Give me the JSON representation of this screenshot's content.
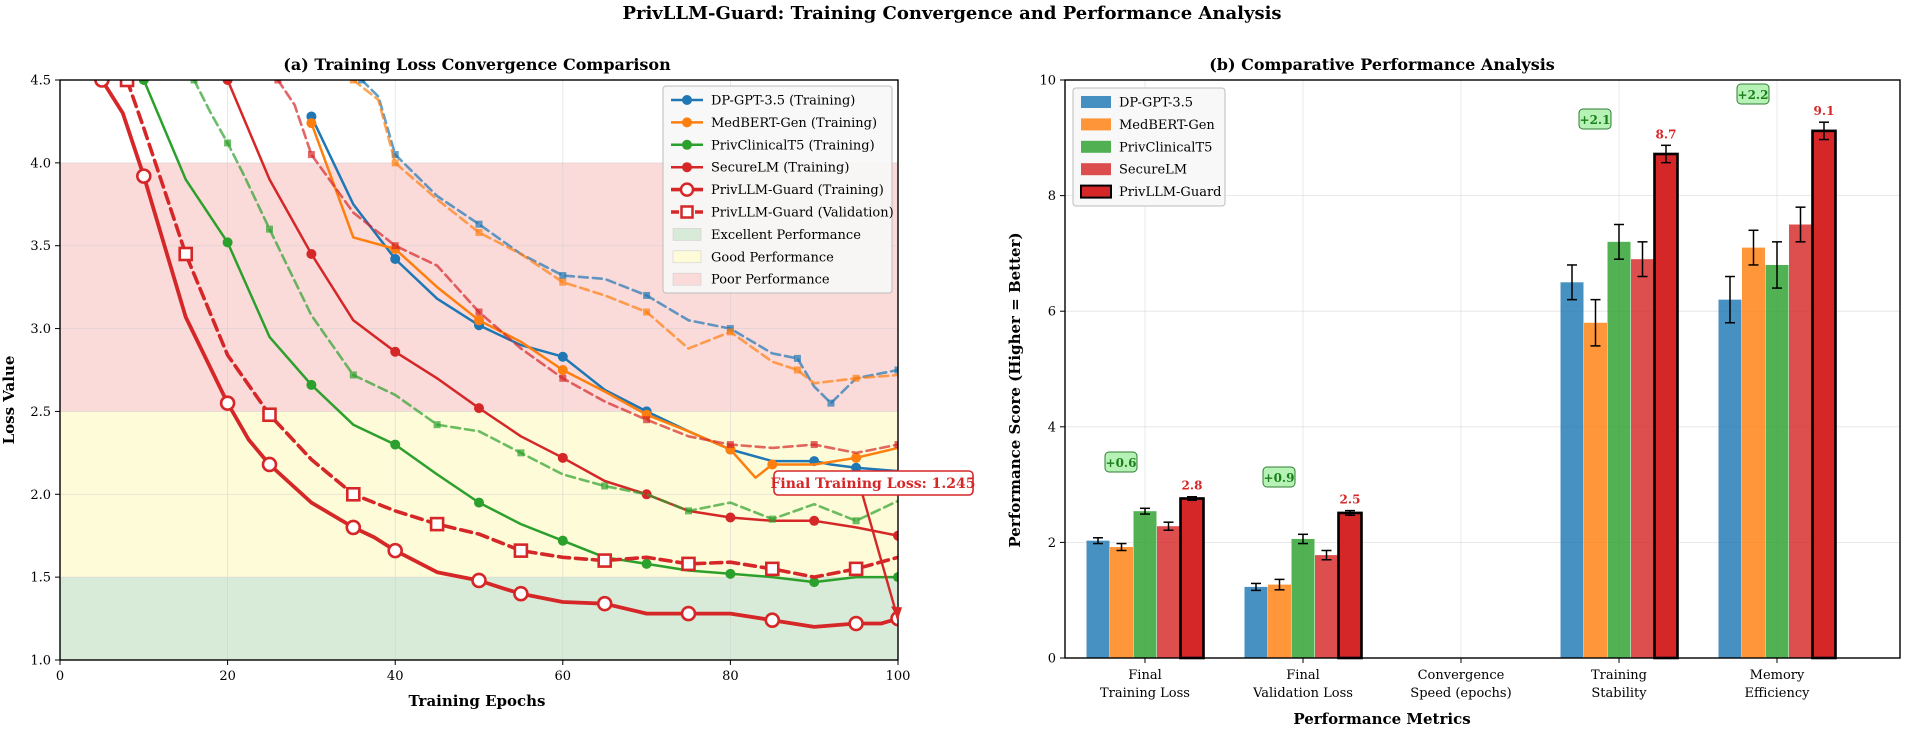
{
  "figure": {
    "suptitle": "PrivLLM-Guard: Training Convergence and Performance Analysis"
  },
  "colors": {
    "blue": "#1f77b4",
    "orange": "#ff7f0e",
    "green": "#2ca02c",
    "red": "#d62728",
    "redDark": "#c41e1e",
    "excellent": "#d8ebd8",
    "good": "#fdfbd8",
    "poor": "#fbdada",
    "labelRed": "#d62728",
    "improveBg": "#b6f2b6",
    "improveText": "#1a7f1a"
  },
  "chart_data": [
    {
      "type": "line",
      "title": "(a) Training Loss Convergence Comparison",
      "xlabel": "Training Epochs",
      "ylabel": "Loss Value",
      "xlim": [
        0,
        100
      ],
      "ylim": [
        1.0,
        4.5
      ],
      "xticks": [
        "0",
        "20",
        "40",
        "60",
        "80",
        "100"
      ],
      "yticks": [
        "1.0",
        "1.5",
        "2.0",
        "2.5",
        "3.0",
        "3.5",
        "4.0",
        "4.5"
      ],
      "grid": true,
      "bands": [
        {
          "name": "Excellent Performance",
          "from": 1.0,
          "to": 1.5,
          "color": "#d8ebd8"
        },
        {
          "name": "Good Performance",
          "from": 1.5,
          "to": 2.5,
          "color": "#fdfbd8"
        },
        {
          "name": "Poor Performance",
          "from": 2.5,
          "to": 4.0,
          "color": "#fbdada"
        }
      ],
      "series": [
        {
          "name": "DP-GPT-3.5 (Training)",
          "color": "#1f77b4",
          "style": "solid",
          "marker": "circle",
          "x": [
            30,
            35,
            40,
            45,
            50,
            55,
            60,
            65,
            70,
            75,
            80,
            85,
            90,
            92,
            95,
            100
          ],
          "y": [
            4.28,
            3.75,
            3.42,
            3.18,
            3.02,
            2.9,
            2.83,
            2.63,
            2.5,
            2.38,
            2.27,
            2.2,
            2.2,
            2.18,
            2.16,
            2.14
          ]
        },
        {
          "name": "MedBERT-Gen (Training)",
          "color": "#ff7f0e",
          "style": "solid",
          "marker": "circle",
          "x": [
            30,
            35,
            40,
            45,
            50,
            55,
            60,
            65,
            70,
            75,
            80,
            83,
            85,
            90,
            95,
            100
          ],
          "y": [
            4.24,
            3.55,
            3.48,
            3.25,
            3.05,
            2.92,
            2.75,
            2.62,
            2.48,
            2.38,
            2.27,
            2.1,
            2.18,
            2.18,
            2.22,
            2.28
          ]
        },
        {
          "name": "PrivClinicalT5 (Training)",
          "color": "#2ca02c",
          "style": "solid",
          "marker": "circle",
          "x": [
            10,
            15,
            20,
            25,
            30,
            35,
            40,
            45,
            50,
            55,
            60,
            65,
            70,
            75,
            80,
            85,
            90,
            95,
            100
          ],
          "y": [
            4.5,
            3.9,
            3.52,
            2.95,
            2.66,
            2.42,
            2.3,
            2.12,
            1.95,
            1.82,
            1.72,
            1.62,
            1.58,
            1.54,
            1.52,
            1.5,
            1.47,
            1.5,
            1.5
          ]
        },
        {
          "name": "SecureLM (Training)",
          "color": "#d62728",
          "style": "solid",
          "marker": "circle",
          "x": [
            20,
            25,
            30,
            35,
            40,
            45,
            50,
            55,
            60,
            65,
            70,
            75,
            80,
            85,
            90,
            95,
            100
          ],
          "y": [
            4.5,
            3.9,
            3.45,
            3.05,
            2.86,
            2.7,
            2.52,
            2.35,
            2.22,
            2.08,
            2.0,
            1.9,
            1.86,
            1.84,
            1.84,
            1.8,
            1.75
          ]
        },
        {
          "name": "PrivLLM-Guard (Training)",
          "color": "#d62728",
          "style": "solid-thick",
          "marker": "open-circle",
          "x": [
            5,
            7.5,
            10,
            15,
            20,
            22.5,
            25,
            30,
            35,
            37.5,
            40,
            45,
            50,
            53,
            55,
            60,
            65,
            70,
            75,
            80,
            85,
            90,
            95,
            98,
            100
          ],
          "y": [
            4.5,
            4.3,
            3.92,
            3.07,
            2.55,
            2.33,
            2.18,
            1.95,
            1.8,
            1.74,
            1.66,
            1.53,
            1.48,
            1.43,
            1.4,
            1.35,
            1.34,
            1.28,
            1.28,
            1.28,
            1.24,
            1.2,
            1.22,
            1.22,
            1.25
          ]
        },
        {
          "name": "PrivLLM-Guard (Validation)",
          "color": "#d62728",
          "style": "dashed-thick",
          "marker": "open-square",
          "x": [
            8,
            10,
            15,
            20,
            25,
            30,
            35,
            40,
            45,
            50,
            55,
            60,
            65,
            70,
            75,
            80,
            85,
            90,
            95,
            100
          ],
          "y": [
            4.5,
            4.21,
            3.45,
            2.84,
            2.48,
            2.21,
            2.0,
            1.9,
            1.82,
            1.76,
            1.66,
            1.62,
            1.6,
            1.62,
            1.58,
            1.59,
            1.55,
            1.5,
            1.55,
            1.62
          ]
        },
        {
          "name": "DP-GPT-3.5 (Validation)",
          "color": "#1f77b4",
          "style": "dashed",
          "marker": "square",
          "x": [
            36,
            38,
            40,
            45,
            50,
            55,
            60,
            65,
            70,
            75,
            80,
            85,
            88,
            90,
            92,
            95,
            100
          ],
          "y": [
            4.5,
            4.4,
            4.05,
            3.8,
            3.63,
            3.45,
            3.32,
            3.3,
            3.2,
            3.05,
            3.0,
            2.85,
            2.82,
            2.65,
            2.55,
            2.7,
            2.75
          ]
        },
        {
          "name": "MedBERT-Gen (Validation)",
          "color": "#ff7f0e",
          "style": "dashed",
          "marker": "square",
          "x": [
            35,
            38,
            40,
            45,
            50,
            55,
            60,
            65,
            70,
            75,
            80,
            85,
            88,
            90,
            95,
            100
          ],
          "y": [
            4.5,
            4.38,
            4.0,
            3.78,
            3.58,
            3.45,
            3.28,
            3.2,
            3.1,
            2.88,
            2.98,
            2.8,
            2.75,
            2.67,
            2.7,
            2.72
          ]
        },
        {
          "name": "PrivClinicalT5 (Validation)",
          "color": "#2ca02c",
          "style": "dashed",
          "marker": "square",
          "x": [
            16,
            18,
            20,
            22,
            25,
            30,
            35,
            40,
            45,
            50,
            55,
            60,
            65,
            70,
            75,
            80,
            85,
            90,
            95,
            100
          ],
          "y": [
            4.5,
            4.3,
            4.12,
            3.92,
            3.6,
            3.08,
            2.72,
            2.6,
            2.42,
            2.38,
            2.25,
            2.12,
            2.05,
            2.0,
            1.9,
            1.95,
            1.85,
            1.94,
            1.84,
            1.96
          ]
        },
        {
          "name": "SecureLM (Validation)",
          "color": "#d62728",
          "style": "dashed",
          "marker": "square",
          "x": [
            26,
            28,
            30,
            35,
            40,
            45,
            50,
            55,
            60,
            65,
            70,
            75,
            80,
            85,
            90,
            95,
            100
          ],
          "y": [
            4.5,
            4.35,
            4.05,
            3.7,
            3.5,
            3.38,
            3.1,
            2.88,
            2.7,
            2.56,
            2.45,
            2.35,
            2.3,
            2.28,
            2.3,
            2.25,
            2.3
          ]
        }
      ],
      "legend": [
        {
          "label": "DP-GPT-3.5 (Training)",
          "color": "#1f77b4",
          "kind": "line-dot"
        },
        {
          "label": "MedBERT-Gen (Training)",
          "color": "#ff7f0e",
          "kind": "line-dot"
        },
        {
          "label": "PrivClinicalT5 (Training)",
          "color": "#2ca02c",
          "kind": "line-dot"
        },
        {
          "label": "SecureLM (Training)",
          "color": "#d62728",
          "kind": "line-dot"
        },
        {
          "label": "PrivLLM-Guard (Training)",
          "color": "#d62728",
          "kind": "line-open-circle"
        },
        {
          "label": "PrivLLM-Guard (Validation)",
          "color": "#d62728",
          "kind": "dash-open-square"
        },
        {
          "label": "Excellent Performance",
          "color": "#d8ebd8",
          "kind": "patch"
        },
        {
          "label": "Good Performance",
          "color": "#fdfbd8",
          "kind": "patch"
        },
        {
          "label": "Poor Performance",
          "color": "#fbdada",
          "kind": "patch"
        }
      ],
      "legend_position": "upper-right",
      "annotation": {
        "text": "Final Training Loss: 1.245",
        "x": 100,
        "y": 1.245
      }
    },
    {
      "type": "bar",
      "title": "(b) Comparative Performance Analysis",
      "xlabel": "Performance Metrics",
      "ylabel": "Performance Score (Higher = Better)",
      "ylim": [
        0,
        10
      ],
      "yticks": [
        "0",
        "2",
        "4",
        "6",
        "8",
        "10"
      ],
      "grid": true,
      "categories": [
        [
          "Final",
          "Training Loss"
        ],
        [
          "Final",
          "Validation Loss"
        ],
        [
          "Convergence",
          "Speed (epochs)"
        ],
        [
          "Training",
          "Stability"
        ],
        [
          "Memory",
          "Efficiency"
        ]
      ],
      "series": [
        {
          "name": "DP-GPT-3.5",
          "color": "#1f77b4",
          "values": [
            2.03,
            1.23,
            0,
            6.5,
            6.2
          ],
          "errors": [
            0.05,
            0.06,
            0,
            0.3,
            0.4
          ]
        },
        {
          "name": "MedBERT-Gen",
          "color": "#ff7f0e",
          "values": [
            1.92,
            1.27,
            0,
            5.8,
            7.1
          ],
          "errors": [
            0.06,
            0.09,
            0,
            0.4,
            0.3
          ]
        },
        {
          "name": "PrivClinicalT5",
          "color": "#2ca02c",
          "values": [
            2.54,
            2.06,
            0,
            7.2,
            6.8
          ],
          "errors": [
            0.05,
            0.08,
            0,
            0.3,
            0.4
          ]
        },
        {
          "name": "SecureLM",
          "color": "#d62728",
          "values": [
            2.28,
            1.78,
            0,
            6.9,
            7.5
          ],
          "errors": [
            0.07,
            0.08,
            0,
            0.3,
            0.3
          ]
        },
        {
          "name": "PrivLLM-Guard",
          "color": "#d62728",
          "highlight": true,
          "values": [
            2.76,
            2.51,
            0,
            8.72,
            9.12
          ],
          "errors": [
            0.03,
            0.04,
            0,
            0.15,
            0.15
          ]
        }
      ],
      "value_labels": [
        "2.8",
        "2.5",
        "",
        "8.7",
        "9.1"
      ],
      "improvement_labels": [
        "+0.6",
        "+0.9",
        "",
        "+2.1",
        "+2.2"
      ],
      "legend": [
        "DP-GPT-3.5",
        "MedBERT-Gen",
        "PrivClinicalT5",
        "SecureLM",
        "PrivLLM-Guard"
      ],
      "legend_position": "upper-left"
    }
  ]
}
